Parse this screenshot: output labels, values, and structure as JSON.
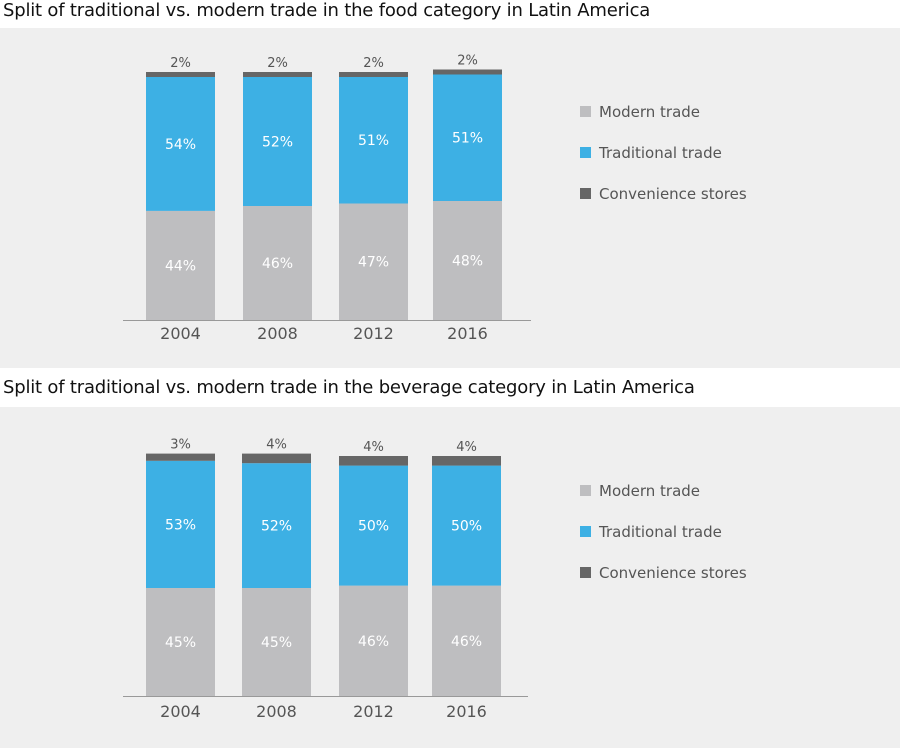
{
  "colors": {
    "modern": "#bebec0",
    "traditional": "#3db0e4",
    "convenience": "#666666",
    "axis": "#999999",
    "panel": "#efefef"
  },
  "chart_data": [
    {
      "type": "bar",
      "stacked": true,
      "title": "Split of traditional vs. modern trade in the food category in Latin America",
      "categories": [
        "2004",
        "2008",
        "2012",
        "2016"
      ],
      "series": [
        {
          "name": "Modern trade",
          "values": [
            44,
            46,
            47,
            48
          ],
          "labels": [
            "44%",
            "46%",
            "47%",
            "48%"
          ]
        },
        {
          "name": "Traditional trade",
          "values": [
            54,
            52,
            51,
            51
          ],
          "labels": [
            "54%",
            "52%",
            "51%",
            "51%"
          ]
        },
        {
          "name": "Convenience stores",
          "values": [
            2,
            2,
            2,
            2
          ],
          "labels": [
            "2%",
            "2%",
            "2%",
            "2%"
          ]
        }
      ],
      "legend": [
        "Modern trade",
        "Traditional trade",
        "Convenience stores"
      ],
      "legend_position": "right",
      "ylim": [
        0,
        100
      ]
    },
    {
      "type": "bar",
      "stacked": true,
      "title": "Split of traditional vs. modern trade in the beverage category in Latin America",
      "categories": [
        "2004",
        "2008",
        "2012",
        "2016"
      ],
      "series": [
        {
          "name": "Modern trade",
          "values": [
            45,
            45,
            46,
            46
          ],
          "labels": [
            "45%",
            "45%",
            "46%",
            "46%"
          ]
        },
        {
          "name": "Traditional trade",
          "values": [
            53,
            52,
            50,
            50
          ],
          "labels": [
            "53%",
            "52%",
            "50%",
            "50%"
          ]
        },
        {
          "name": "Convenience stores",
          "values": [
            3,
            4,
            4,
            4
          ],
          "labels": [
            "3%",
            "4%",
            "4%",
            "4%"
          ]
        }
      ],
      "legend": [
        "Modern trade",
        "Traditional trade",
        "Convenience stores"
      ],
      "legend_position": "right",
      "ylim": [
        0,
        100
      ]
    }
  ]
}
